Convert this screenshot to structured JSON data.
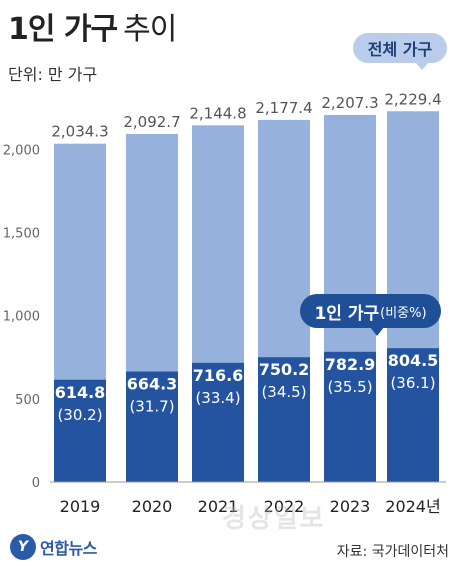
{
  "title": {
    "main": "1인 가구",
    "sub": "추이"
  },
  "unit": "단위: 만 가구",
  "legend": {
    "total": "전체 가구",
    "one_person_main": "1인 가구",
    "one_person_paren": "(비중%)"
  },
  "source": "자료: 국가데이터처",
  "brand": {
    "logo_mark": "Y",
    "name": "연합뉴스"
  },
  "watermark": "경상일보",
  "colors": {
    "total_bar": "#96b1db",
    "one_person_bar": "#2454a0",
    "axis_text": "#333333"
  },
  "chart_data": {
    "type": "bar",
    "stacking": "overlay",
    "categories": [
      "2019",
      "2020",
      "2021",
      "2022",
      "2023",
      "2024년"
    ],
    "series": [
      {
        "name": "전체 가구",
        "values": [
          2034.3,
          2092.7,
          2144.8,
          2177.4,
          2207.3,
          2229.4
        ],
        "labels": [
          "2,034.3",
          "2,092.7",
          "2,144.8",
          "2,177.4",
          "2,207.3",
          "2,229.4"
        ]
      },
      {
        "name": "1인 가구",
        "values": [
          614.8,
          664.3,
          716.6,
          750.2,
          782.9,
          804.5
        ],
        "labels": [
          "614.8",
          "664.3",
          "716.6",
          "750.2",
          "782.9",
          "804.5"
        ],
        "share_percent": [
          30.2,
          31.7,
          33.4,
          34.5,
          35.5,
          36.1
        ],
        "share_labels": [
          "(30.2)",
          "(31.7)",
          "(33.4)",
          "(34.5)",
          "(35.5)",
          "(36.1)"
        ]
      }
    ],
    "yticks": [
      0,
      500,
      1000,
      1500,
      2000
    ],
    "ylim": [
      0,
      2400
    ],
    "grid": false
  }
}
